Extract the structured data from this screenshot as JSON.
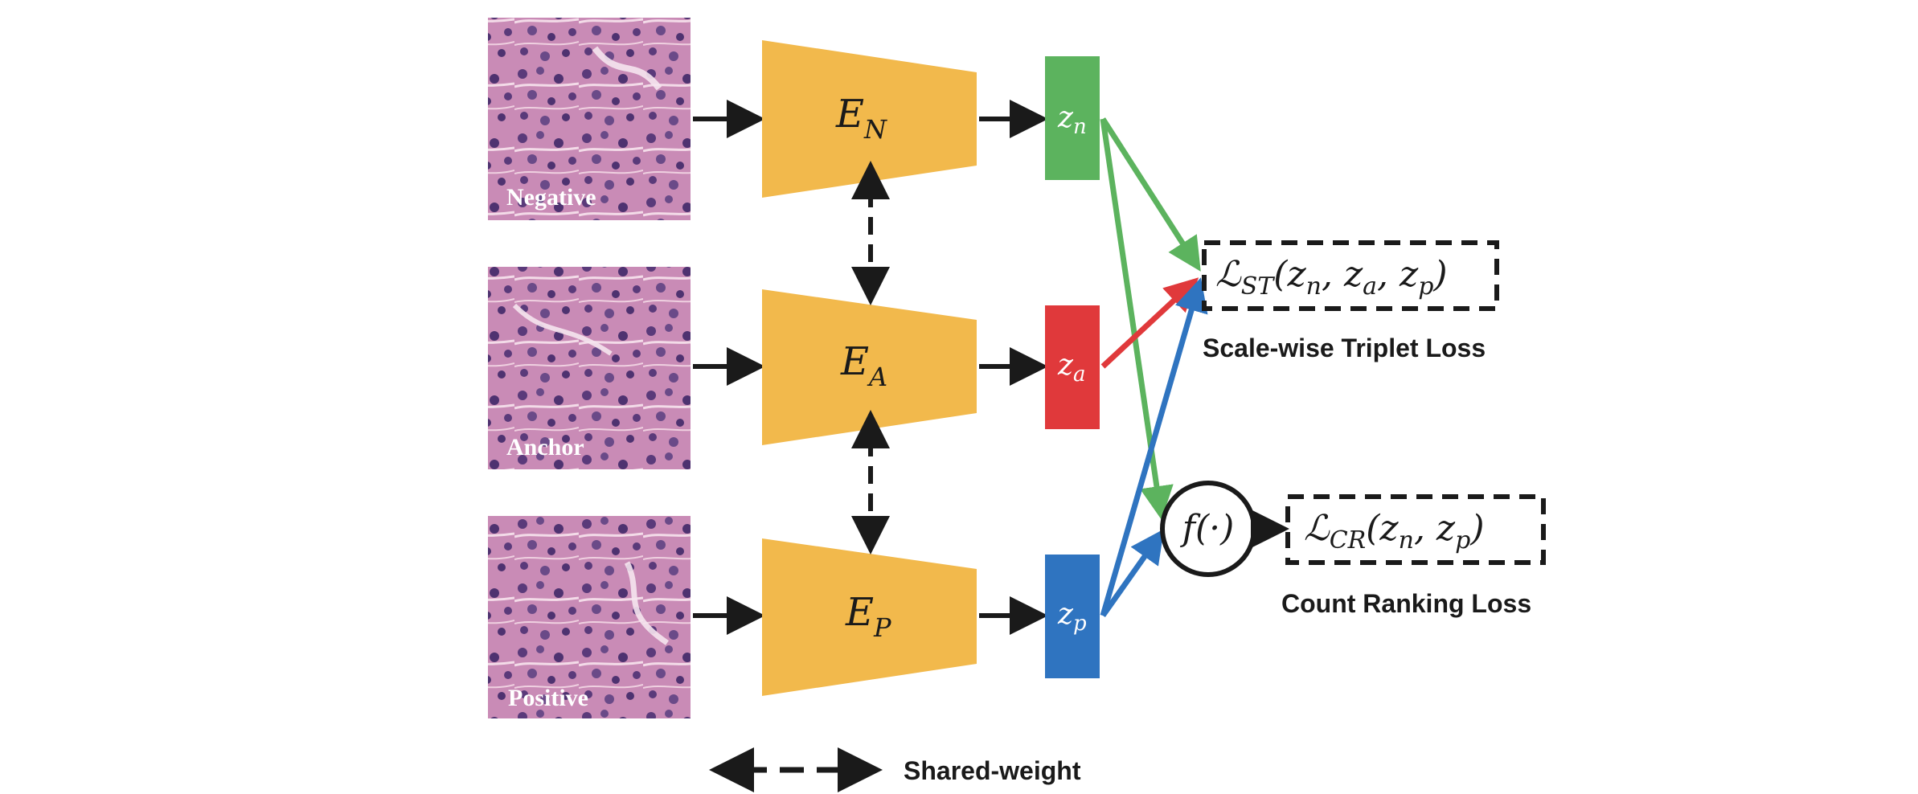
{
  "patches": {
    "negative": {
      "label": "Negative"
    },
    "anchor": {
      "label": "Anchor"
    },
    "positive": {
      "label": "Positive"
    }
  },
  "encoders": {
    "negative": {
      "main": "E",
      "sub": "N"
    },
    "anchor": {
      "main": "E",
      "sub": "A"
    },
    "positive": {
      "main": "E",
      "sub": "P"
    }
  },
  "embeddings": {
    "negative": {
      "main": "z",
      "sub": "n",
      "color": "#5cb35e"
    },
    "anchor": {
      "main": "z",
      "sub": "a",
      "color": "#e0393b"
    },
    "positive": {
      "main": "z",
      "sub": "p",
      "color": "#2f74c0"
    }
  },
  "losses": {
    "triplet": {
      "symbol": "ℒ",
      "sub": "ST",
      "args": [
        {
          "main": "z",
          "sub": "n"
        },
        {
          "main": "z",
          "sub": "a"
        },
        {
          "main": "z",
          "sub": "p"
        }
      ],
      "caption": "Scale-wise Triplet Loss"
    },
    "ranking": {
      "symbol": "ℒ",
      "sub": "CR",
      "args": [
        {
          "main": "z",
          "sub": "n"
        },
        {
          "main": "z",
          "sub": "p"
        }
      ],
      "caption": "Count Ranking Loss"
    }
  },
  "function_node": {
    "text": "f(·)"
  },
  "legend": {
    "label": "Shared-weight"
  },
  "colors": {
    "encoder": "#f2b94c",
    "arrow": "#1a1a1a",
    "tissue_base": "#c97fae",
    "nuclei": "#4a3370"
  }
}
